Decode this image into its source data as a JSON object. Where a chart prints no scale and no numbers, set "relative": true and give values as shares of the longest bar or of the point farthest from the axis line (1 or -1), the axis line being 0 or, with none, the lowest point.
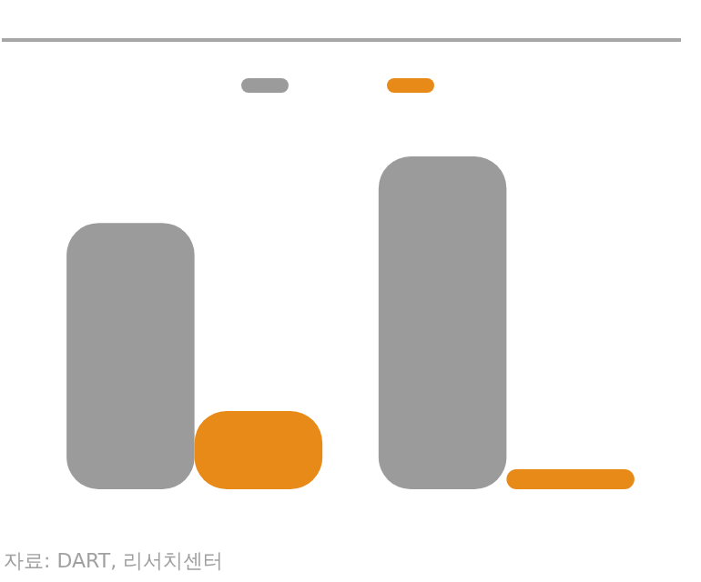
{
  "chart_data": {
    "type": "bar",
    "relative": true,
    "categories": [
      null,
      null
    ],
    "series": [
      {
        "color": "#9b9b9b",
        "values": [
          0.8,
          1
        ]
      },
      {
        "color": "#e88a17",
        "values": [
          0.235,
          0.06
        ]
      }
    ],
    "annotations": [
      "자료: DART, 리서치센터"
    ]
  }
}
